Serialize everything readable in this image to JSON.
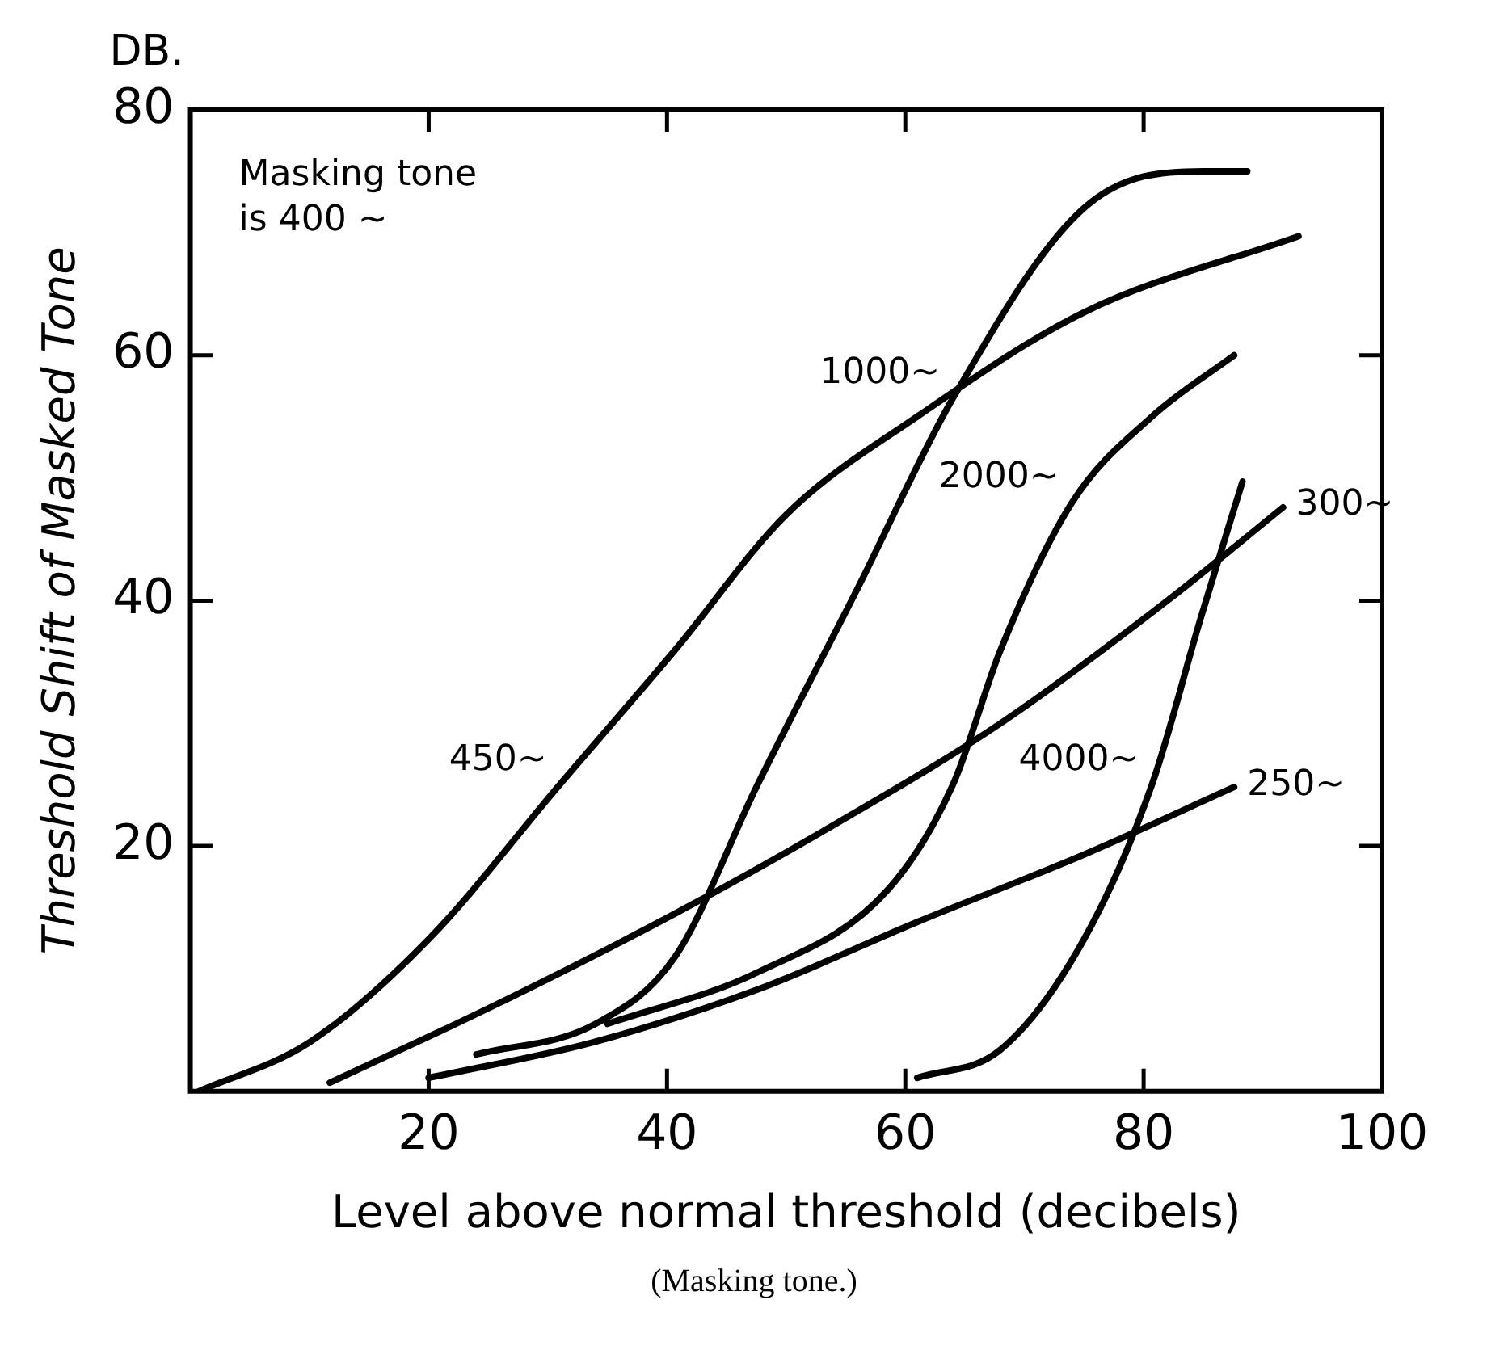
{
  "chart_data": {
    "type": "line",
    "xlabel": "Level above normal threshold (decibels)",
    "ylabel": "Threshold Shift of Masked Tone",
    "xlim": [
      0,
      100
    ],
    "ylim": [
      0,
      80
    ],
    "xticks": [
      20,
      40,
      60,
      80,
      100
    ],
    "yticks": [
      20,
      40,
      60,
      80
    ],
    "grid": false,
    "legend": false,
    "marker": "none",
    "line_style": "solid",
    "series": [
      {
        "color": "#000000",
        "x": [
          0.7,
          10,
          20,
          31,
          40.7,
          50,
          61,
          75,
          93
        ],
        "values": [
          0,
          4,
          12.4,
          25,
          36,
          47,
          55,
          63.5,
          69.7
        ]
      },
      {
        "color": "#000000",
        "x": [
          24,
          34,
          40.7,
          47.6,
          56,
          64,
          75,
          85,
          88.7
        ],
        "values": [
          3,
          5.5,
          11,
          25,
          41,
          56.5,
          72,
          75,
          75
        ]
      },
      {
        "color": "#000000",
        "x": [
          35,
          47.6,
          58.6,
          64,
          68,
          74,
          80.7,
          87.6
        ],
        "values": [
          5.5,
          9.7,
          16.5,
          25,
          36,
          48,
          55,
          60
        ]
      },
      {
        "color": "#000000",
        "x": [
          11.7,
          25.5,
          40.7,
          54.5,
          68,
          82,
          91.7
        ],
        "values": [
          0.7,
          7,
          14.5,
          22,
          30,
          40,
          47.6
        ]
      },
      {
        "color": "#000000",
        "x": [
          20,
          33.8,
          47.6,
          61,
          75,
          87.6
        ],
        "values": [
          1.1,
          4,
          8.3,
          13.8,
          19.3,
          24.8
        ]
      },
      {
        "color": "#000000",
        "x": [
          61,
          68,
          75,
          80.7,
          84.8,
          88.3
        ],
        "values": [
          1.1,
          3.4,
          12.4,
          25,
          38.6,
          49.7
        ]
      }
    ],
    "annotations": [
      "DB.",
      "Masking tone is 400 ~",
      "(Masking tone.)",
      {
        "text": "450~",
        "x": 31,
        "y": 25
      },
      {
        "text": "1000~",
        "x": 64,
        "y": 56.5
      },
      {
        "text": "2000~",
        "x": 74,
        "y": 48
      },
      {
        "text": "300~",
        "x": 91.7,
        "y": 47.6
      },
      {
        "text": "250~",
        "x": 87.6,
        "y": 24.8
      },
      {
        "text": "4000~",
        "x": 80.7,
        "y": 25
      }
    ]
  }
}
